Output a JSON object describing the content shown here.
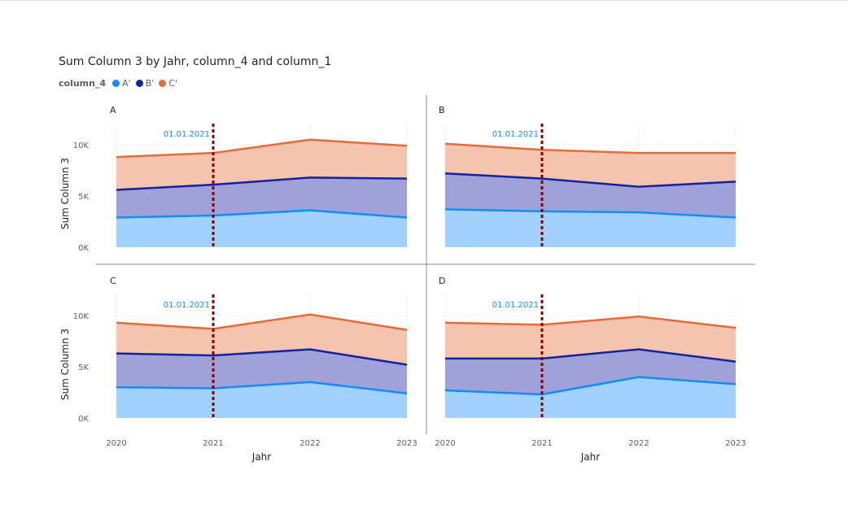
{
  "visual": {
    "title": "Sum Column 3 by Jahr, column_4 and column_1",
    "legend_title": "column_4",
    "legend_items": [
      {
        "label": "A'",
        "color": "#118DFF"
      },
      {
        "label": "B'",
        "color": "#12239E"
      },
      {
        "label": "C'",
        "color": "#E66C37"
      }
    ]
  },
  "chart_data": {
    "type": "area",
    "stacked": true,
    "small_multiples_by": "column_1",
    "xlabel": "Jahr",
    "ylabel": "Sum Column 3",
    "x": [
      "2020",
      "2021",
      "2022",
      "2023"
    ],
    "y_ticks": [
      "0K",
      "5K",
      "10K"
    ],
    "ylim": [
      0,
      12000
    ],
    "reference_line": {
      "x": "2021",
      "label": "01.01.2021",
      "color": "#8B0000"
    },
    "grid": true,
    "panels": [
      {
        "name": "A",
        "series": [
          {
            "name": "A'",
            "values": [
              2900,
              3100,
              3600,
              2900
            ]
          },
          {
            "name": "B'",
            "values": [
              2700,
              3000,
              3200,
              3800
            ]
          },
          {
            "name": "C'",
            "values": [
              3200,
              3100,
              3700,
              3200
            ]
          }
        ]
      },
      {
        "name": "B",
        "series": [
          {
            "name": "A'",
            "values": [
              3700,
              3500,
              3400,
              2900
            ]
          },
          {
            "name": "B'",
            "values": [
              3500,
              3200,
              2500,
              3500
            ]
          },
          {
            "name": "C'",
            "values": [
              2900,
              2800,
              3300,
              2800
            ]
          }
        ]
      },
      {
        "name": "C",
        "series": [
          {
            "name": "A'",
            "values": [
              3000,
              2900,
              3500,
              2400
            ]
          },
          {
            "name": "B'",
            "values": [
              3300,
              3200,
              3200,
              2800
            ]
          },
          {
            "name": "C'",
            "values": [
              3000,
              2600,
              3400,
              3400
            ]
          }
        ]
      },
      {
        "name": "D",
        "series": [
          {
            "name": "A'",
            "values": [
              2700,
              2300,
              4000,
              3300
            ]
          },
          {
            "name": "B'",
            "values": [
              3100,
              3500,
              2700,
              2200
            ]
          },
          {
            "name": "C'",
            "values": [
              3500,
              3300,
              3200,
              3300
            ]
          }
        ]
      }
    ]
  }
}
